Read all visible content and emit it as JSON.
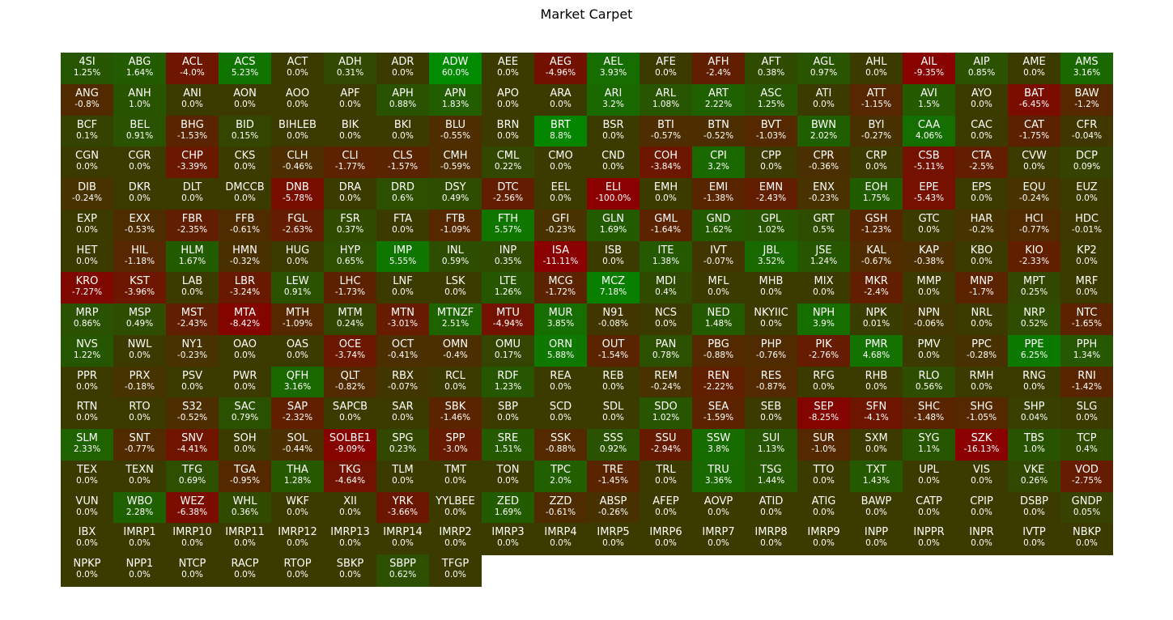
{
  "chart_data": {
    "type": "heatmap",
    "title": "Market Carpet",
    "columns": 20,
    "color_scale": {
      "negative_max": "#8b0000",
      "neutral": "#3b3b00",
      "positive_max": "#008b00"
    },
    "items": [
      {
        "t": "4SI",
        "v": "1.25%"
      },
      {
        "t": "ABG",
        "v": "1.64%"
      },
      {
        "t": "ACL",
        "v": "-4.0%"
      },
      {
        "t": "ACS",
        "v": "5.23%"
      },
      {
        "t": "ACT",
        "v": "0.0%"
      },
      {
        "t": "ADH",
        "v": "0.31%"
      },
      {
        "t": "ADR",
        "v": "0.0%"
      },
      {
        "t": "ADW",
        "v": "60.0%"
      },
      {
        "t": "AEE",
        "v": "0.0%"
      },
      {
        "t": "AEG",
        "v": "-4.96%"
      },
      {
        "t": "AEL",
        "v": "3.93%"
      },
      {
        "t": "AFE",
        "v": "0.0%"
      },
      {
        "t": "AFH",
        "v": "-2.4%"
      },
      {
        "t": "AFT",
        "v": "0.38%"
      },
      {
        "t": "AGL",
        "v": "0.97%"
      },
      {
        "t": "AHL",
        "v": "0.0%"
      },
      {
        "t": "AIL",
        "v": "-9.35%"
      },
      {
        "t": "AIP",
        "v": "0.85%"
      },
      {
        "t": "AME",
        "v": "0.0%"
      },
      {
        "t": "AMS",
        "v": "3.16%"
      },
      {
        "t": "ANG",
        "v": "-0.8%"
      },
      {
        "t": "ANH",
        "v": "1.0%"
      },
      {
        "t": "ANI",
        "v": "0.0%"
      },
      {
        "t": "AON",
        "v": "0.0%"
      },
      {
        "t": "AOO",
        "v": "0.0%"
      },
      {
        "t": "APF",
        "v": "0.0%"
      },
      {
        "t": "APH",
        "v": "0.88%"
      },
      {
        "t": "APN",
        "v": "1.83%"
      },
      {
        "t": "APO",
        "v": "0.0%"
      },
      {
        "t": "ARA",
        "v": "0.0%"
      },
      {
        "t": "ARI",
        "v": "3.2%"
      },
      {
        "t": "ARL",
        "v": "1.08%"
      },
      {
        "t": "ART",
        "v": "2.22%"
      },
      {
        "t": "ASC",
        "v": "1.25%"
      },
      {
        "t": "ATI",
        "v": "0.0%"
      },
      {
        "t": "ATT",
        "v": "-1.15%"
      },
      {
        "t": "AVI",
        "v": "1.5%"
      },
      {
        "t": "AYO",
        "v": "0.0%"
      },
      {
        "t": "BAT",
        "v": "-6.45%"
      },
      {
        "t": "BAW",
        "v": "-1.2%"
      },
      {
        "t": "BCF",
        "v": "0.1%"
      },
      {
        "t": "BEL",
        "v": "0.91%"
      },
      {
        "t": "BHG",
        "v": "-1.53%"
      },
      {
        "t": "BID",
        "v": "0.15%"
      },
      {
        "t": "BIHLEB",
        "v": "0.0%"
      },
      {
        "t": "BIK",
        "v": "0.0%"
      },
      {
        "t": "BKI",
        "v": "0.0%"
      },
      {
        "t": "BLU",
        "v": "-0.55%"
      },
      {
        "t": "BRN",
        "v": "0.0%"
      },
      {
        "t": "BRT",
        "v": "8.8%"
      },
      {
        "t": "BSR",
        "v": "0.0%"
      },
      {
        "t": "BTI",
        "v": "-0.57%"
      },
      {
        "t": "BTN",
        "v": "-0.52%"
      },
      {
        "t": "BVT",
        "v": "-1.03%"
      },
      {
        "t": "BWN",
        "v": "2.02%"
      },
      {
        "t": "BYI",
        "v": "-0.27%"
      },
      {
        "t": "CAA",
        "v": "4.06%"
      },
      {
        "t": "CAC",
        "v": "0.0%"
      },
      {
        "t": "CAT",
        "v": "-1.75%"
      },
      {
        "t": "CFR",
        "v": "-0.04%"
      },
      {
        "t": "CGN",
        "v": "0.0%"
      },
      {
        "t": "CGR",
        "v": "0.0%"
      },
      {
        "t": "CHP",
        "v": "-3.39%"
      },
      {
        "t": "CKS",
        "v": "0.0%"
      },
      {
        "t": "CLH",
        "v": "-0.46%"
      },
      {
        "t": "CLI",
        "v": "-1.77%"
      },
      {
        "t": "CLS",
        "v": "-1.57%"
      },
      {
        "t": "CMH",
        "v": "-0.59%"
      },
      {
        "t": "CML",
        "v": "0.22%"
      },
      {
        "t": "CMO",
        "v": "0.0%"
      },
      {
        "t": "CND",
        "v": "0.0%"
      },
      {
        "t": "COH",
        "v": "-3.84%"
      },
      {
        "t": "CPI",
        "v": "3.2%"
      },
      {
        "t": "CPP",
        "v": "0.0%"
      },
      {
        "t": "CPR",
        "v": "-0.36%"
      },
      {
        "t": "CRP",
        "v": "0.0%"
      },
      {
        "t": "CSB",
        "v": "-5.11%"
      },
      {
        "t": "CTA",
        "v": "-2.5%"
      },
      {
        "t": "CVW",
        "v": "0.0%"
      },
      {
        "t": "DCP",
        "v": "0.09%"
      },
      {
        "t": "DIB",
        "v": "-0.24%"
      },
      {
        "t": "DKR",
        "v": "0.0%"
      },
      {
        "t": "DLT",
        "v": "0.0%"
      },
      {
        "t": "DMCCB",
        "v": "0.0%"
      },
      {
        "t": "DNB",
        "v": "-5.78%"
      },
      {
        "t": "DRA",
        "v": "0.0%"
      },
      {
        "t": "DRD",
        "v": "0.6%"
      },
      {
        "t": "DSY",
        "v": "0.49%"
      },
      {
        "t": "DTC",
        "v": "-2.56%"
      },
      {
        "t": "EEL",
        "v": "0.0%"
      },
      {
        "t": "ELI",
        "v": "-100.0%"
      },
      {
        "t": "EMH",
        "v": "0.0%"
      },
      {
        "t": "EMI",
        "v": "-1.38%"
      },
      {
        "t": "EMN",
        "v": "-2.43%"
      },
      {
        "t": "ENX",
        "v": "-0.23%"
      },
      {
        "t": "EOH",
        "v": "1.75%"
      },
      {
        "t": "EPE",
        "v": "-5.43%"
      },
      {
        "t": "EPS",
        "v": "0.0%"
      },
      {
        "t": "EQU",
        "v": "-0.24%"
      },
      {
        "t": "EUZ",
        "v": "0.0%"
      },
      {
        "t": "EXP",
        "v": "0.0%"
      },
      {
        "t": "EXX",
        "v": "-0.53%"
      },
      {
        "t": "FBR",
        "v": "-2.35%"
      },
      {
        "t": "FFB",
        "v": "-0.61%"
      },
      {
        "t": "FGL",
        "v": "-2.63%"
      },
      {
        "t": "FSR",
        "v": "0.37%"
      },
      {
        "t": "FTA",
        "v": "0.0%"
      },
      {
        "t": "FTB",
        "v": "-1.09%"
      },
      {
        "t": "FTH",
        "v": "5.57%"
      },
      {
        "t": "GFI",
        "v": "-0.23%"
      },
      {
        "t": "GLN",
        "v": "1.69%"
      },
      {
        "t": "GML",
        "v": "-1.64%"
      },
      {
        "t": "GND",
        "v": "1.62%"
      },
      {
        "t": "GPL",
        "v": "1.02%"
      },
      {
        "t": "GRT",
        "v": "0.5%"
      },
      {
        "t": "GSH",
        "v": "-1.23%"
      },
      {
        "t": "GTC",
        "v": "0.0%"
      },
      {
        "t": "HAR",
        "v": "-0.2%"
      },
      {
        "t": "HCI",
        "v": "-0.77%"
      },
      {
        "t": "HDC",
        "v": "-0.01%"
      },
      {
        "t": "HET",
        "v": "0.0%"
      },
      {
        "t": "HIL",
        "v": "-1.18%"
      },
      {
        "t": "HLM",
        "v": "1.67%"
      },
      {
        "t": "HMN",
        "v": "-0.32%"
      },
      {
        "t": "HUG",
        "v": "0.0%"
      },
      {
        "t": "HYP",
        "v": "0.65%"
      },
      {
        "t": "IMP",
        "v": "5.55%"
      },
      {
        "t": "INL",
        "v": "0.59%"
      },
      {
        "t": "INP",
        "v": "0.35%"
      },
      {
        "t": "ISA",
        "v": "-11.11%"
      },
      {
        "t": "ISB",
        "v": "0.0%"
      },
      {
        "t": "ITE",
        "v": "1.38%"
      },
      {
        "t": "IVT",
        "v": "-0.07%"
      },
      {
        "t": "JBL",
        "v": "3.52%"
      },
      {
        "t": "JSE",
        "v": "1.24%"
      },
      {
        "t": "KAL",
        "v": "-0.67%"
      },
      {
        "t": "KAP",
        "v": "-0.38%"
      },
      {
        "t": "KBO",
        "v": "0.0%"
      },
      {
        "t": "KIO",
        "v": "-2.33%"
      },
      {
        "t": "KP2",
        "v": "0.0%"
      },
      {
        "t": "KRO",
        "v": "-7.27%"
      },
      {
        "t": "KST",
        "v": "-3.96%"
      },
      {
        "t": "LAB",
        "v": "0.0%"
      },
      {
        "t": "LBR",
        "v": "-3.24%"
      },
      {
        "t": "LEW",
        "v": "0.91%"
      },
      {
        "t": "LHC",
        "v": "-1.73%"
      },
      {
        "t": "LNF",
        "v": "0.0%"
      },
      {
        "t": "LSK",
        "v": "0.0%"
      },
      {
        "t": "LTE",
        "v": "1.26%"
      },
      {
        "t": "MCG",
        "v": "-1.72%"
      },
      {
        "t": "MCZ",
        "v": "7.18%"
      },
      {
        "t": "MDI",
        "v": "0.4%"
      },
      {
        "t": "MFL",
        "v": "0.0%"
      },
      {
        "t": "MHB",
        "v": "0.0%"
      },
      {
        "t": "MIX",
        "v": "0.0%"
      },
      {
        "t": "MKR",
        "v": "-2.4%"
      },
      {
        "t": "MMP",
        "v": "0.0%"
      },
      {
        "t": "MNP",
        "v": "-1.7%"
      },
      {
        "t": "MPT",
        "v": "0.25%"
      },
      {
        "t": "MRF",
        "v": "0.0%"
      },
      {
        "t": "MRP",
        "v": "0.86%"
      },
      {
        "t": "MSP",
        "v": "0.49%"
      },
      {
        "t": "MST",
        "v": "-2.43%"
      },
      {
        "t": "MTA",
        "v": "-8.42%"
      },
      {
        "t": "MTH",
        "v": "-1.09%"
      },
      {
        "t": "MTM",
        "v": "0.24%"
      },
      {
        "t": "MTN",
        "v": "-3.01%"
      },
      {
        "t": "MTNZF",
        "v": "2.51%"
      },
      {
        "t": "MTU",
        "v": "-4.94%"
      },
      {
        "t": "MUR",
        "v": "3.85%"
      },
      {
        "t": "N91",
        "v": "-0.08%"
      },
      {
        "t": "NCS",
        "v": "0.0%"
      },
      {
        "t": "NED",
        "v": "1.48%"
      },
      {
        "t": "NKYIIC",
        "v": "0.0%"
      },
      {
        "t": "NPH",
        "v": "3.9%"
      },
      {
        "t": "NPK",
        "v": "0.01%"
      },
      {
        "t": "NPN",
        "v": "-0.06%"
      },
      {
        "t": "NRL",
        "v": "0.0%"
      },
      {
        "t": "NRP",
        "v": "0.52%"
      },
      {
        "t": "NTC",
        "v": "-1.65%"
      },
      {
        "t": "NVS",
        "v": "1.22%"
      },
      {
        "t": "NWL",
        "v": "0.0%"
      },
      {
        "t": "NY1",
        "v": "-0.23%"
      },
      {
        "t": "OAO",
        "v": "0.0%"
      },
      {
        "t": "OAS",
        "v": "0.0%"
      },
      {
        "t": "OCE",
        "v": "-3.74%"
      },
      {
        "t": "OCT",
        "v": "-0.41%"
      },
      {
        "t": "OMN",
        "v": "-0.4%"
      },
      {
        "t": "OMU",
        "v": "0.17%"
      },
      {
        "t": "ORN",
        "v": "5.88%"
      },
      {
        "t": "OUT",
        "v": "-1.54%"
      },
      {
        "t": "PAN",
        "v": "0.78%"
      },
      {
        "t": "PBG",
        "v": "-0.88%"
      },
      {
        "t": "PHP",
        "v": "-0.76%"
      },
      {
        "t": "PIK",
        "v": "-2.76%"
      },
      {
        "t": "PMR",
        "v": "4.68%"
      },
      {
        "t": "PMV",
        "v": "0.0%"
      },
      {
        "t": "PPC",
        "v": "-0.28%"
      },
      {
        "t": "PPE",
        "v": "6.25%"
      },
      {
        "t": "PPH",
        "v": "1.34%"
      },
      {
        "t": "PPR",
        "v": "0.0%"
      },
      {
        "t": "PRX",
        "v": "-0.18%"
      },
      {
        "t": "PSV",
        "v": "0.0%"
      },
      {
        "t": "PWR",
        "v": "0.0%"
      },
      {
        "t": "QFH",
        "v": "3.16%"
      },
      {
        "t": "QLT",
        "v": "-0.82%"
      },
      {
        "t": "RBX",
        "v": "-0.07%"
      },
      {
        "t": "RCL",
        "v": "0.0%"
      },
      {
        "t": "RDF",
        "v": "1.23%"
      },
      {
        "t": "REA",
        "v": "0.0%"
      },
      {
        "t": "REB",
        "v": "0.0%"
      },
      {
        "t": "REM",
        "v": "-0.24%"
      },
      {
        "t": "REN",
        "v": "-2.22%"
      },
      {
        "t": "RES",
        "v": "-0.87%"
      },
      {
        "t": "RFG",
        "v": "0.0%"
      },
      {
        "t": "RHB",
        "v": "0.0%"
      },
      {
        "t": "RLO",
        "v": "0.56%"
      },
      {
        "t": "RMH",
        "v": "0.0%"
      },
      {
        "t": "RNG",
        "v": "0.0%"
      },
      {
        "t": "RNI",
        "v": "-1.42%"
      },
      {
        "t": "RTN",
        "v": "0.0%"
      },
      {
        "t": "RTO",
        "v": "0.0%"
      },
      {
        "t": "S32",
        "v": "-0.52%"
      },
      {
        "t": "SAC",
        "v": "0.79%"
      },
      {
        "t": "SAP",
        "v": "-2.32%"
      },
      {
        "t": "SAPCB",
        "v": "0.0%"
      },
      {
        "t": "SAR",
        "v": "0.0%"
      },
      {
        "t": "SBK",
        "v": "-1.46%"
      },
      {
        "t": "SBP",
        "v": "0.0%"
      },
      {
        "t": "SCD",
        "v": "0.0%"
      },
      {
        "t": "SDL",
        "v": "0.0%"
      },
      {
        "t": "SDO",
        "v": "1.02%"
      },
      {
        "t": "SEA",
        "v": "-1.59%"
      },
      {
        "t": "SEB",
        "v": "0.0%"
      },
      {
        "t": "SEP",
        "v": "-8.25%"
      },
      {
        "t": "SFN",
        "v": "-4.1%"
      },
      {
        "t": "SHC",
        "v": "-1.48%"
      },
      {
        "t": "SHG",
        "v": "-1.05%"
      },
      {
        "t": "SHP",
        "v": "0.04%"
      },
      {
        "t": "SLG",
        "v": "0.0%"
      },
      {
        "t": "SLM",
        "v": "2.33%"
      },
      {
        "t": "SNT",
        "v": "-0.77%"
      },
      {
        "t": "SNV",
        "v": "-4.41%"
      },
      {
        "t": "SOH",
        "v": "0.0%"
      },
      {
        "t": "SOL",
        "v": "-0.44%"
      },
      {
        "t": "SOLBE1",
        "v": "-9.09%"
      },
      {
        "t": "SPG",
        "v": "0.23%"
      },
      {
        "t": "SPP",
        "v": "-3.0%"
      },
      {
        "t": "SRE",
        "v": "1.51%"
      },
      {
        "t": "SSK",
        "v": "-0.88%"
      },
      {
        "t": "SSS",
        "v": "0.92%"
      },
      {
        "t": "SSU",
        "v": "-2.94%"
      },
      {
        "t": "SSW",
        "v": "3.8%"
      },
      {
        "t": "SUI",
        "v": "1.13%"
      },
      {
        "t": "SUR",
        "v": "-1.0%"
      },
      {
        "t": "SXM",
        "v": "0.0%"
      },
      {
        "t": "SYG",
        "v": "1.1%"
      },
      {
        "t": "SZK",
        "v": "-16.13%"
      },
      {
        "t": "TBS",
        "v": "1.0%"
      },
      {
        "t": "TCP",
        "v": "0.4%"
      },
      {
        "t": "TEX",
        "v": "0.0%"
      },
      {
        "t": "TEXN",
        "v": "0.0%"
      },
      {
        "t": "TFG",
        "v": "0.69%"
      },
      {
        "t": "TGA",
        "v": "-0.95%"
      },
      {
        "t": "THA",
        "v": "1.28%"
      },
      {
        "t": "TKG",
        "v": "-4.64%"
      },
      {
        "t": "TLM",
        "v": "0.0%"
      },
      {
        "t": "TMT",
        "v": "0.0%"
      },
      {
        "t": "TON",
        "v": "0.0%"
      },
      {
        "t": "TPC",
        "v": "2.0%"
      },
      {
        "t": "TRE",
        "v": "-1.45%"
      },
      {
        "t": "TRL",
        "v": "0.0%"
      },
      {
        "t": "TRU",
        "v": "3.36%"
      },
      {
        "t": "TSG",
        "v": "1.44%"
      },
      {
        "t": "TTO",
        "v": "0.0%"
      },
      {
        "t": "TXT",
        "v": "1.43%"
      },
      {
        "t": "UPL",
        "v": "0.0%"
      },
      {
        "t": "VIS",
        "v": "0.0%"
      },
      {
        "t": "VKE",
        "v": "0.26%"
      },
      {
        "t": "VOD",
        "v": "-2.75%"
      },
      {
        "t": "VUN",
        "v": "0.0%"
      },
      {
        "t": "WBO",
        "v": "2.28%"
      },
      {
        "t": "WEZ",
        "v": "-6.38%"
      },
      {
        "t": "WHL",
        "v": "0.36%"
      },
      {
        "t": "WKF",
        "v": "0.0%"
      },
      {
        "t": "XII",
        "v": "0.0%"
      },
      {
        "t": "YRK",
        "v": "-3.66%"
      },
      {
        "t": "YYLBEE",
        "v": "0.0%"
      },
      {
        "t": "ZED",
        "v": "1.69%"
      },
      {
        "t": "ZZD",
        "v": "-0.61%"
      },
      {
        "t": "ABSP",
        "v": "-0.26%"
      },
      {
        "t": "AFEP",
        "v": "0.0%"
      },
      {
        "t": "AOVP",
        "v": "0.0%"
      },
      {
        "t": "ATID",
        "v": "0.0%"
      },
      {
        "t": "ATIG",
        "v": "0.0%"
      },
      {
        "t": "BAWP",
        "v": "0.0%"
      },
      {
        "t": "CATP",
        "v": "0.0%"
      },
      {
        "t": "CPIP",
        "v": "0.0%"
      },
      {
        "t": "DSBP",
        "v": "0.0%"
      },
      {
        "t": "GNDP",
        "v": "0.05%"
      },
      {
        "t": "IBX",
        "v": "0.0%"
      },
      {
        "t": "IMRP1",
        "v": "0.0%"
      },
      {
        "t": "IMRP10",
        "v": "0.0%"
      },
      {
        "t": "IMRP11",
        "v": "0.0%"
      },
      {
        "t": "IMRP12",
        "v": "0.0%"
      },
      {
        "t": "IMRP13",
        "v": "0.0%"
      },
      {
        "t": "IMRP14",
        "v": "0.0%"
      },
      {
        "t": "IMRP2",
        "v": "0.0%"
      },
      {
        "t": "IMRP3",
        "v": "0.0%"
      },
      {
        "t": "IMRP4",
        "v": "0.0%"
      },
      {
        "t": "IMRP5",
        "v": "0.0%"
      },
      {
        "t": "IMRP6",
        "v": "0.0%"
      },
      {
        "t": "IMRP7",
        "v": "0.0%"
      },
      {
        "t": "IMRP8",
        "v": "0.0%"
      },
      {
        "t": "IMRP9",
        "v": "0.0%"
      },
      {
        "t": "INPP",
        "v": "0.0%"
      },
      {
        "t": "INPPR",
        "v": "0.0%"
      },
      {
        "t": "INPR",
        "v": "0.0%"
      },
      {
        "t": "IVTP",
        "v": "0.0%"
      },
      {
        "t": "NBKP",
        "v": "0.0%"
      },
      {
        "t": "NPKP",
        "v": "0.0%"
      },
      {
        "t": "NPP1",
        "v": "0.0%"
      },
      {
        "t": "NTCP",
        "v": "0.0%"
      },
      {
        "t": "RACP",
        "v": "0.0%"
      },
      {
        "t": "RTOP",
        "v": "0.0%"
      },
      {
        "t": "SBKP",
        "v": "0.0%"
      },
      {
        "t": "SBPP",
        "v": "0.62%"
      },
      {
        "t": "TFGP",
        "v": "0.0%"
      }
    ]
  }
}
